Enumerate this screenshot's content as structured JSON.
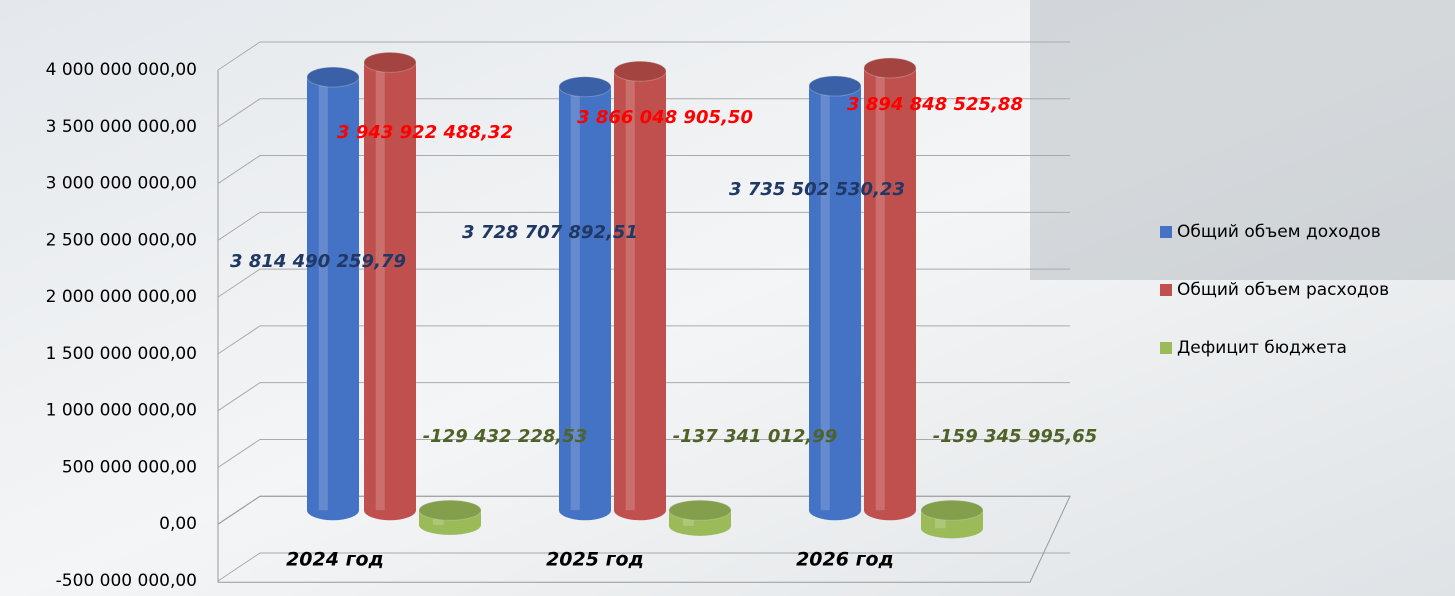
{
  "chart_data": {
    "type": "cylinder-bar",
    "categories": [
      "2024 год",
      "2025 год",
      "2026 год"
    ],
    "series": [
      {
        "name": "Общий объем доходов",
        "color": "#4472c4",
        "label_color": "#1f3864",
        "values": [
          3814490259.79,
          3728707892.51,
          3735502530.23
        ],
        "value_labels": [
          "3 814 490 259,79",
          "3 728 707 892,51",
          "3 735 502 530,23"
        ]
      },
      {
        "name": "Общий объем расходов",
        "color": "#c0504d",
        "label_color": "#ff0000",
        "values": [
          3943922488.32,
          3866048905.5,
          3894848525.88
        ],
        "value_labels": [
          "3 943 922 488,32",
          "3 866 048 905,50",
          "3 894 848 525,88"
        ]
      },
      {
        "name": "Дефицит бюджета",
        "color": "#9bbb59",
        "label_color": "#4f6228",
        "values": [
          -129432228.53,
          -137341012.99,
          -159345995.65
        ],
        "value_labels": [
          "-129 432 228,53",
          "-137 341 012,99",
          "-159 345 995,65"
        ]
      }
    ],
    "ylim": [
      -500000000,
      4000000000
    ],
    "yticks": [
      {
        "value": -500000000,
        "label": "-500 000 000,00"
      },
      {
        "value": 0,
        "label": "0,00"
      },
      {
        "value": 500000000,
        "label": "500 000 000,00"
      },
      {
        "value": 1000000000,
        "label": "1 000 000 000,00"
      },
      {
        "value": 1500000000,
        "label": "1 500 000 000,00"
      },
      {
        "value": 2000000000,
        "label": "2 000 000 000,00"
      },
      {
        "value": 2500000000,
        "label": "2 500 000 000,00"
      },
      {
        "value": 3000000000,
        "label": "3 000 000 000,00"
      },
      {
        "value": 3500000000,
        "label": "3 500 000 000,00"
      },
      {
        "value": 4000000000,
        "label": "4 000 000 000,00"
      }
    ],
    "grid": true,
    "legend": "right"
  }
}
